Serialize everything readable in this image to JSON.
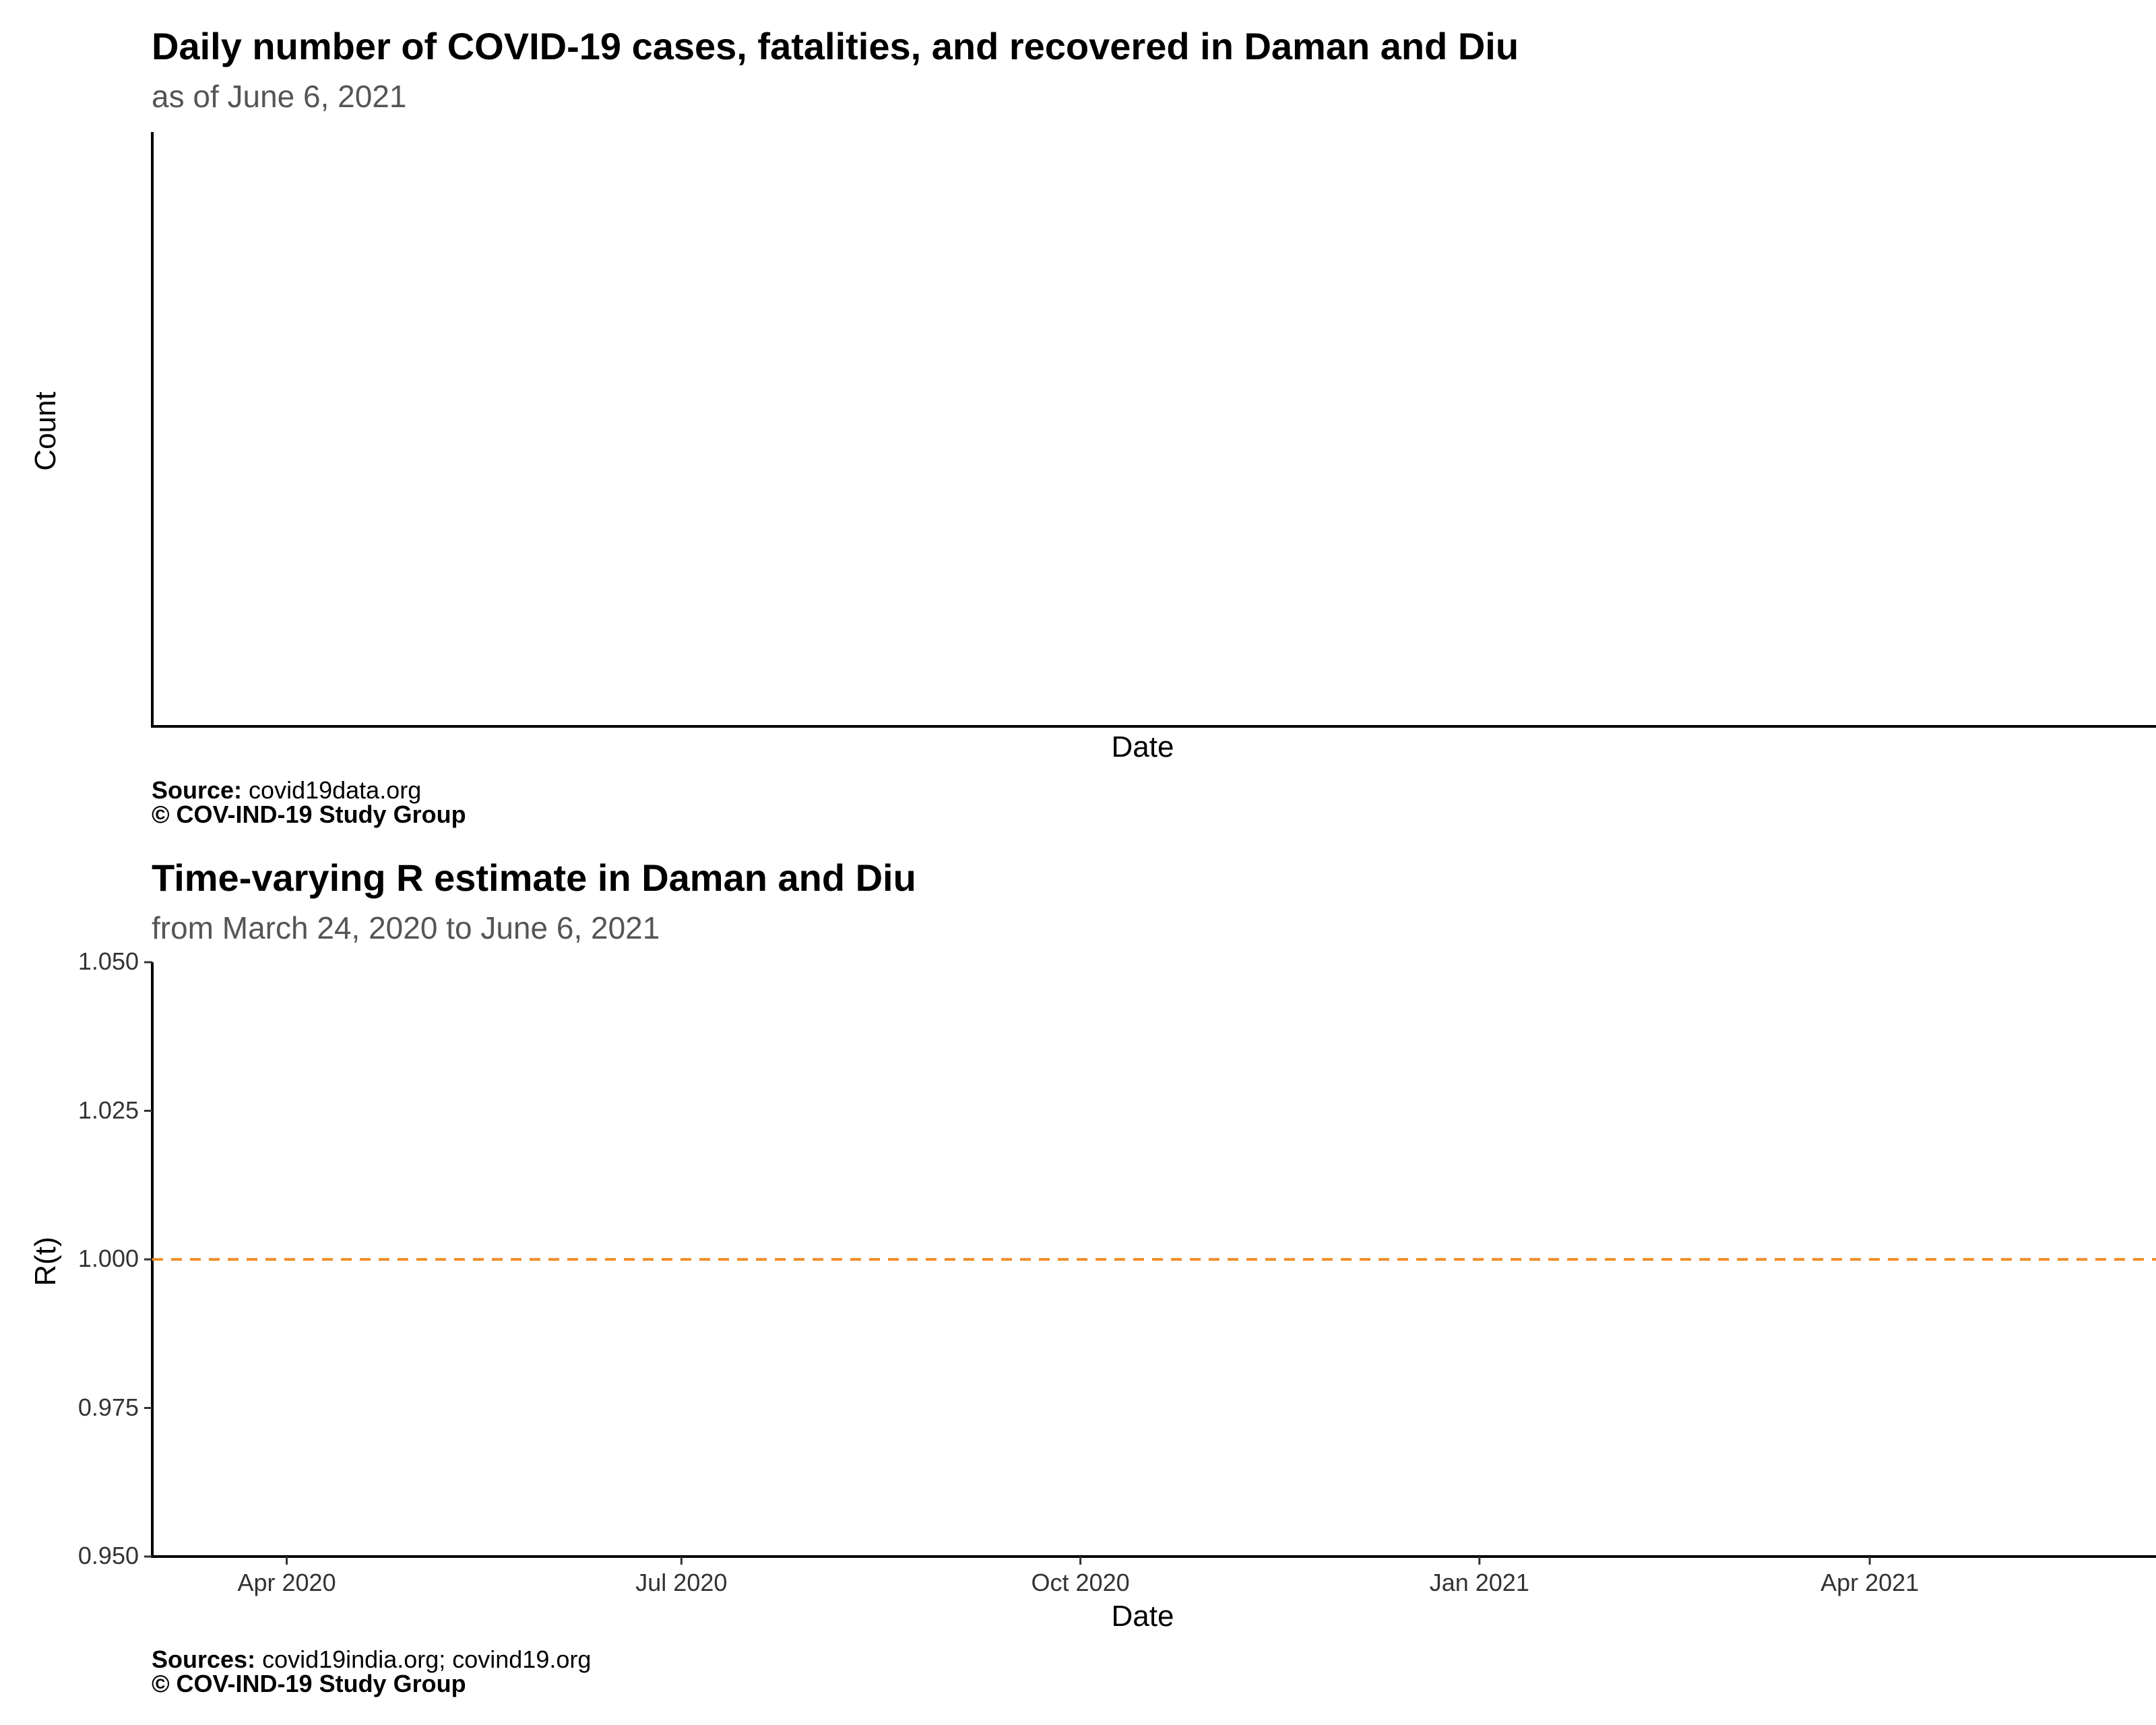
{
  "chart_data": [
    {
      "type": "bar",
      "title": "Daily number of COVID-19 cases, fatalities, and recovered in Daman and Diu",
      "subtitle": "as of June  6, 2021",
      "xlabel": "Date",
      "ylabel": "Count",
      "series": [],
      "grid": false,
      "caption": {
        "source_label": "Source:",
        "source_text": " covid19data.org",
        "copyright": "© COV-IND-19 Study Group"
      }
    },
    {
      "type": "line",
      "title": "Time-varying R estimate in Daman and Diu",
      "subtitle": "from March 24, 2020 to June  6, 2021",
      "xlabel": "Date",
      "ylabel": "R(t)",
      "ylim": [
        0.95,
        1.05
      ],
      "xlim": [
        "2020-03-01",
        "2021-06-06"
      ],
      "yticks": [
        {
          "value": 1.05,
          "label": "1.050"
        },
        {
          "value": 1.025,
          "label": "1.025"
        },
        {
          "value": 1.0,
          "label": "1.000"
        },
        {
          "value": 0.975,
          "label": "0.975"
        },
        {
          "value": 0.95,
          "label": "0.950"
        }
      ],
      "xticks": [
        {
          "date": "2020-04-01",
          "label": "Apr 2020"
        },
        {
          "date": "2020-07-01",
          "label": "Jul 2020"
        },
        {
          "date": "2020-10-01",
          "label": "Oct 2020"
        },
        {
          "date": "2021-01-01",
          "label": "Jan 2021"
        },
        {
          "date": "2021-04-01",
          "label": "Apr 2021"
        }
      ],
      "series": [],
      "reference_line": {
        "y": 1.0,
        "style": "dashed",
        "color": "#F28E2B"
      },
      "grid": false,
      "caption": {
        "source_label": "Sources:",
        "source_text": " covid19india.org; covind19.org",
        "copyright": "© COV-IND-19 Study Group"
      }
    }
  ]
}
